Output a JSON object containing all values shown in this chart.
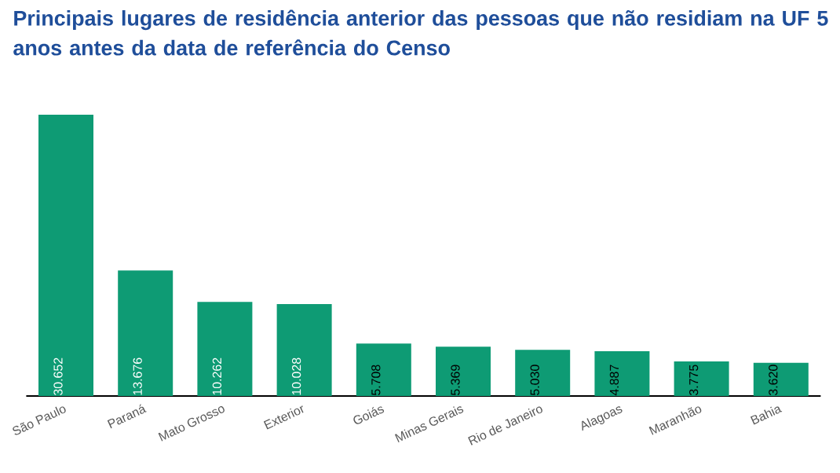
{
  "chart_data": {
    "type": "bar",
    "title": "Principais lugares de residência anterior das pessoas que não residiam na UF 5 anos antes da data de referência do Censo",
    "categories": [
      "São Paulo",
      "Paraná",
      "Mato Grosso",
      "Exterior",
      "Goiás",
      "Minas Gerais",
      "Rio de Janeiro",
      "Alagoas",
      "Maranhão",
      "Bahia"
    ],
    "values": [
      30652,
      13676,
      10262,
      10028,
      5708,
      5369,
      5030,
      4887,
      3775,
      3620
    ],
    "value_labels": [
      "30.652",
      "13.676",
      "10.262",
      "10.028",
      "5.708",
      "5.369",
      "5.030",
      "4.887",
      "3.775",
      "3.620"
    ],
    "color": "#0e9b74"
  }
}
